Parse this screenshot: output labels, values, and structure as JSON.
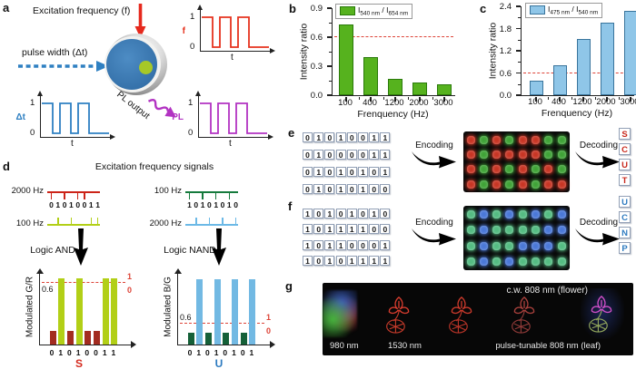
{
  "panel_a": {
    "label": "a",
    "excitation_label": "Excitation frequency (f)",
    "pulse_label": "pulse width (Δt)",
    "pl_output_label": "PL output",
    "waveforms": [
      {
        "name": "f",
        "color": "#e6331f",
        "one": "1",
        "zero": "0",
        "xlabel": "t"
      },
      {
        "name": "Δt",
        "color": "#2f80c2",
        "one": "1",
        "zero": "0",
        "xlabel": "t"
      },
      {
        "name": "PL",
        "color": "#b233c2",
        "one": "1",
        "zero": "0",
        "xlabel": "t"
      }
    ],
    "sphere_colors": {
      "shell": "#9a9a9a",
      "core": "#3a7ab8",
      "dot": "#a6c827"
    }
  },
  "chart_data": [
    {
      "id": "b",
      "type": "bar",
      "panel_label": "b",
      "categories": [
        "100",
        "400",
        "1200",
        "2000",
        "3000"
      ],
      "values": [
        0.73,
        0.39,
        0.17,
        0.13,
        0.11
      ],
      "ylabel": "Intensity ratio",
      "xlabel": "Frenquency (Hz)",
      "ylim": [
        0,
        0.9
      ],
      "ytick_labels": [
        "0.0",
        "0.3",
        "0.6",
        "0.9"
      ],
      "threshold": 0.6,
      "legend_parts": [
        "I",
        "540 nm",
        " / I",
        "654 nm"
      ],
      "bar_fill": "#56b21e",
      "bar_stroke": "#2a7a0a",
      "dash_color": "#dd4438"
    },
    {
      "id": "c",
      "type": "bar",
      "panel_label": "c",
      "categories": [
        "100",
        "400",
        "1200",
        "2000",
        "3000"
      ],
      "values": [
        0.38,
        0.8,
        1.52,
        1.95,
        2.28
      ],
      "ylabel": "Intensity ratio",
      "xlabel": "Frenquency (Hz)",
      "ylim": [
        0,
        2.4
      ],
      "ytick_labels": [
        "0.0",
        "0.6",
        "1.2",
        "1.8",
        "2.4"
      ],
      "threshold": 0.6,
      "legend_parts": [
        "I",
        "475 nm",
        " / I",
        "540 nm"
      ],
      "bar_fill": "#8fc6e8",
      "bar_stroke": "#39749c",
      "dash_color": "#dd4438"
    },
    {
      "id": "d-and",
      "type": "bar",
      "ylabel": "Modulated G/R",
      "bits": "01010011",
      "high": 0.64,
      "low": 0.13,
      "ymax": 0.72,
      "threshold": 0.6,
      "threshold_label": "0.6",
      "one_label": "1",
      "zero_label": "0",
      "high_fill": "#b2cf17",
      "low_fill": "#a32c20",
      "dash_color": "#dd4438",
      "output": "S",
      "output_color": "#d42a1e"
    },
    {
      "id": "d-nand",
      "type": "bar",
      "ylabel": "Modulated B/G",
      "bits": "01010101",
      "high": 1.85,
      "low": 0.33,
      "ymax": 2.1,
      "threshold": 0.6,
      "threshold_label": "0.6",
      "one_label": "1",
      "zero_label": "0",
      "high_fill": "#72b9e3",
      "low_fill": "#156038",
      "dash_color": "#dd4438",
      "output": "U",
      "output_color": "#2e7bc0"
    }
  ],
  "panel_d": {
    "label": "d",
    "title": "Excitation frequency signals",
    "left": {
      "top_label": "2000 Hz",
      "top_color": "#cc2418",
      "bits": "01010011",
      "top_tick_on": "0",
      "bottom_label": "100 Hz",
      "bottom_color": "#b2cf17",
      "logic_label": "Logic AND"
    },
    "right": {
      "top_label": "100 Hz",
      "top_color": "#157a3c",
      "bits": "10101010",
      "top_tick_on": "1",
      "bottom_label": "2000 Hz",
      "bottom_color": "#6cb9e6",
      "logic_label": "Logic NAND"
    }
  },
  "panel_e": {
    "label": "e",
    "encoding_label": "Encoding",
    "decoding_label": "Decoding",
    "rows": [
      {
        "bits": "01010011",
        "letter": "S"
      },
      {
        "bits": "01000011",
        "letter": "C"
      },
      {
        "bits": "01010101",
        "letter": "U"
      },
      {
        "bits": "01010100",
        "letter": "T"
      }
    ],
    "dot_colors": {
      "0": "#c83524",
      "1": "#3fa337"
    },
    "letter_color": "#c8281c"
  },
  "panel_f": {
    "label": "f",
    "encoding_label": "Encoding",
    "decoding_label": "Decoding",
    "rows": [
      {
        "bits": "10101010",
        "letter": "U"
      },
      {
        "bits": "10111100",
        "letter": "C"
      },
      {
        "bits": "10110001",
        "letter": "N"
      },
      {
        "bits": "10101111",
        "letter": "P"
      }
    ],
    "dot_colors": {
      "0": "#4a78d8",
      "1": "#54bc82"
    },
    "letter_color": "#2e7bc0"
  },
  "panel_g": {
    "label": "g",
    "cw_label": "c.w. 808 nm (flower)",
    "label_980": "980 nm",
    "label_1530": "1530 nm",
    "label_pulse": "pulse-tunable 808 nm (leaf)"
  }
}
